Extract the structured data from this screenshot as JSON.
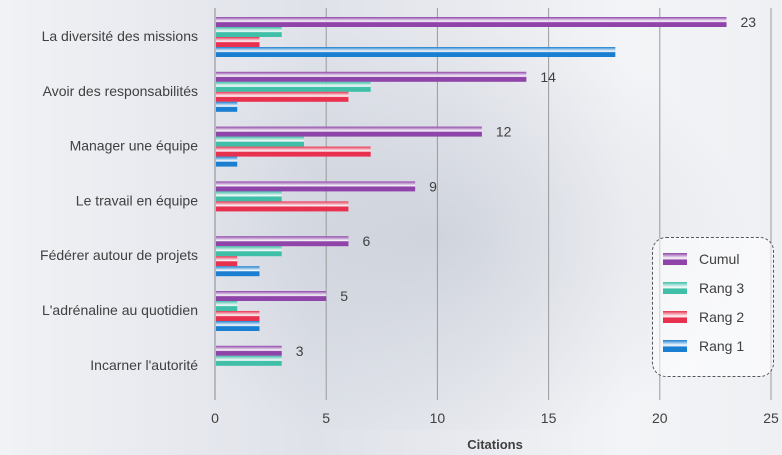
{
  "chart_data": {
    "type": "bar",
    "orientation": "horizontal",
    "xlabel": "Citations",
    "xlim": [
      0,
      25
    ],
    "xticks": [
      0,
      5,
      10,
      15,
      20,
      25
    ],
    "grid": true,
    "legend_position": "bottom-right",
    "categories": [
      "La diversité des missions",
      "Avoir des responsabilités",
      "Manager une équipe",
      "Le travail en équipe",
      "Fédérer autour de projets",
      "L'adrénaline au quotidien",
      "Incarner l'autorité"
    ],
    "series": [
      {
        "name": "Cumul",
        "color": "#8e44a8",
        "values": [
          23,
          14,
          12,
          9,
          6,
          5,
          3
        ]
      },
      {
        "name": "Rang 3",
        "color": "#3fbfa8",
        "values": [
          3,
          7,
          4,
          3,
          3,
          1,
          3
        ]
      },
      {
        "name": "Rang 2",
        "color": "#e8304f",
        "values": [
          2,
          6,
          7,
          6,
          1,
          2,
          0
        ]
      },
      {
        "name": "Rang 1",
        "color": "#1a7fd0",
        "values": [
          18,
          1,
          1,
          0,
          2,
          2,
          0
        ]
      }
    ]
  },
  "legend": {
    "title": "",
    "items": [
      "Cumul",
      "Rang 3",
      "Rang 2",
      "Rang 1"
    ]
  }
}
